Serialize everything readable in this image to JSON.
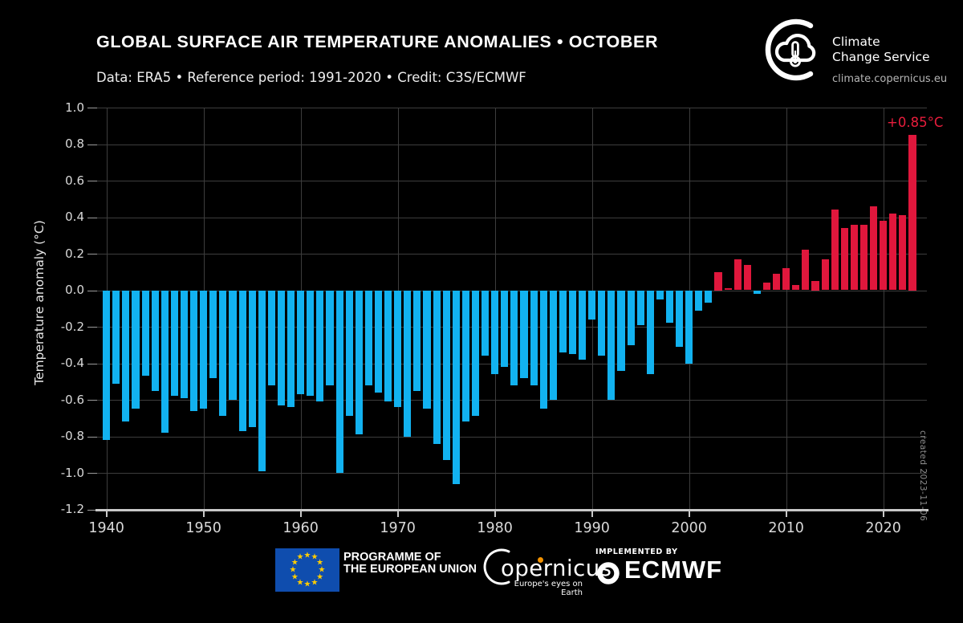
{
  "header": {
    "title": "GLOBAL SURFACE AIR TEMPERATURE ANOMALIES • OCTOBER",
    "subtitle": "Data: ERA5 • Reference period: 1991-2020 • Credit: C3S/ECMWF"
  },
  "c3s_logo": {
    "name_line1": "Climate",
    "name_line2": "Change Service",
    "url": "climate.copernicus.eu"
  },
  "annotations": {
    "peak_label": "+0.85°C",
    "created_note": "created 2023-11-06"
  },
  "footer": {
    "eu_line1": "PROGRAMME OF",
    "eu_line2": "THE EUROPEAN UNION",
    "copernicus_word": "opernicus",
    "copernicus_tagline": "Europe's eyes on Earth",
    "implemented_by": "IMPLEMENTED BY",
    "ecmwf": "ECMWF"
  },
  "chart_data": {
    "type": "bar",
    "title": "GLOBAL SURFACE AIR TEMPERATURE ANOMALIES • OCTOBER",
    "xlabel": "",
    "ylabel": "Temperature anomaly (°C)",
    "x_start_year": 1940,
    "x_end_year": 2023,
    "values": [
      -0.82,
      -0.51,
      -0.72,
      -0.65,
      -0.47,
      -0.55,
      -0.78,
      -0.58,
      -0.59,
      -0.66,
      -0.65,
      -0.48,
      -0.69,
      -0.6,
      -0.77,
      -0.75,
      -0.99,
      -0.52,
      -0.63,
      -0.64,
      -0.57,
      -0.58,
      -0.61,
      -0.52,
      -1.0,
      -0.69,
      -0.79,
      -0.52,
      -0.56,
      -0.61,
      -0.64,
      -0.8,
      -0.55,
      -0.65,
      -0.84,
      -0.93,
      -1.06,
      -0.72,
      -0.69,
      -0.36,
      -0.46,
      -0.42,
      -0.52,
      -0.48,
      -0.52,
      -0.65,
      -0.6,
      -0.34,
      -0.35,
      -0.38,
      -0.16,
      -0.36,
      -0.6,
      -0.44,
      -0.3,
      -0.19,
      -0.46,
      -0.05,
      -0.18,
      -0.31,
      -0.4,
      -0.11,
      -0.07,
      0.1,
      0.01,
      0.17,
      0.14,
      -0.02,
      0.04,
      0.09,
      0.12,
      0.03,
      0.22,
      0.05,
      0.17,
      0.44,
      0.34,
      0.36,
      0.36,
      0.46,
      0.38,
      0.42,
      0.41,
      0.85
    ],
    "ylim": [
      -1.2,
      1.0
    ],
    "yticks": [
      1.0,
      0.8,
      0.6,
      0.4,
      0.2,
      0.0,
      -0.2,
      -0.4,
      -0.6,
      -0.8,
      -1.0,
      -1.2
    ],
    "xticks": [
      1940,
      1950,
      1960,
      1970,
      1980,
      1990,
      2000,
      2010,
      2020
    ],
    "grid": true,
    "legend": "none",
    "colors": {
      "positive": "#e0173c",
      "negative": "#12b2f0"
    },
    "annotation": {
      "year": 2023,
      "text": "+0.85°C"
    }
  },
  "flag_colors": {
    "field": "#0f4dae",
    "stars": "#ffcc00"
  },
  "icons": {
    "c3s": "cloud-thermometer-crescent-icon",
    "eu": "eu-flag",
    "copernicus": "copernicus-crescent-icon",
    "ecmwf": "ecmwf-interlocked-c-icon"
  }
}
